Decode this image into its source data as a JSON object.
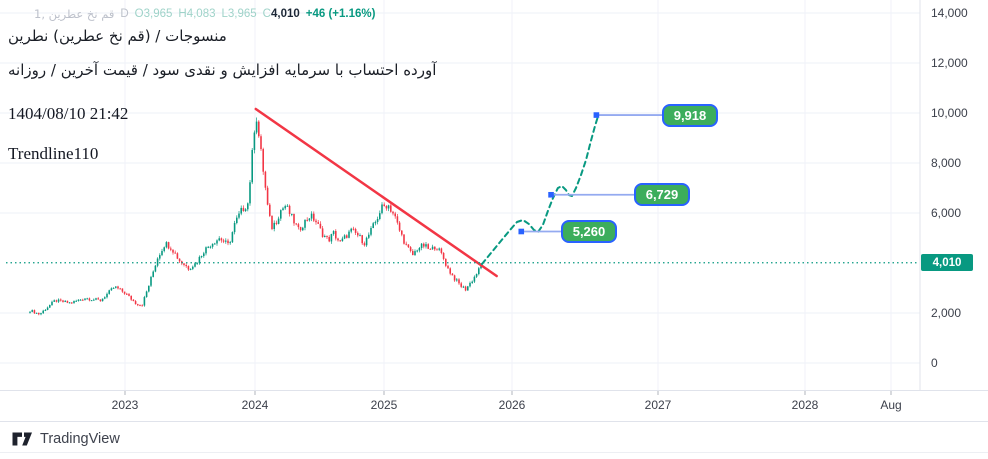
{
  "header": {
    "symbol_line": {
      "symbol": "1, عطرین نخ قم",
      "interval": "D",
      "open_label": "O",
      "open": "3,965",
      "high_label": "H",
      "high": "4,083",
      "low_label": "L",
      "low": "3,965",
      "close_label": "C",
      "close": "4,010",
      "change": "+46 (+1.16%)"
    },
    "title_line": "نطرین (عطرین نخ قم) / منسوجات",
    "subtitle_line": "روزانه / آخرین قیمت / سود نقدی و افزایش سرمایه با احتساب آورده",
    "datetime_line": "1404/08/10 21:42",
    "indicator_name": "Trendline110"
  },
  "footer": {
    "logo_text": "TradingView"
  },
  "chart_data": {
    "type": "candlestick",
    "symbol": "عطرین نخ قم",
    "interval": "D",
    "ohlc_current": {
      "open": 3965,
      "high": 4083,
      "low": 3965,
      "close": 4010,
      "change": 46,
      "change_pct": 1.16
    },
    "x_axis": {
      "labels": [
        "2023",
        "2024",
        "2025",
        "2026",
        "2027",
        "2028",
        "Aug"
      ]
    },
    "y_axis": {
      "tick_values": [
        0,
        2000,
        6000,
        8000,
        10000,
        12000,
        14000
      ],
      "tick_labels": [
        "0",
        "2,000",
        "6,000",
        "8,000",
        "10,000",
        "12,000",
        "14,000"
      ],
      "range": [
        0,
        14500
      ],
      "current_price": 4010,
      "current_price_label": "4,010"
    },
    "close_path": [
      [
        2022.27,
        2100
      ],
      [
        2022.34,
        1950
      ],
      [
        2022.46,
        2500
      ],
      [
        2022.58,
        2400
      ],
      [
        2022.69,
        2600
      ],
      [
        2022.81,
        2500
      ],
      [
        2022.92,
        3050
      ],
      [
        2023.0,
        2800
      ],
      [
        2023.08,
        2400
      ],
      [
        2023.13,
        2300
      ],
      [
        2023.19,
        3200
      ],
      [
        2023.25,
        4200
      ],
      [
        2023.31,
        4800
      ],
      [
        2023.36,
        4600
      ],
      [
        2023.42,
        4100
      ],
      [
        2023.49,
        3800
      ],
      [
        2023.55,
        4000
      ],
      [
        2023.61,
        4500
      ],
      [
        2023.67,
        4800
      ],
      [
        2023.73,
        5000
      ],
      [
        2023.8,
        4700
      ],
      [
        2023.85,
        5600
      ],
      [
        2023.9,
        6100
      ],
      [
        2023.95,
        6400
      ],
      [
        2023.98,
        8200
      ],
      [
        2024.01,
        10100
      ],
      [
        2024.03,
        9200
      ],
      [
        2024.07,
        7600
      ],
      [
        2024.1,
        6300
      ],
      [
        2024.13,
        5400
      ],
      [
        2024.17,
        5700
      ],
      [
        2024.2,
        6100
      ],
      [
        2024.24,
        6300
      ],
      [
        2024.29,
        5800
      ],
      [
        2024.34,
        5300
      ],
      [
        2024.38,
        5600
      ],
      [
        2024.43,
        5900
      ],
      [
        2024.47,
        5700
      ],
      [
        2024.52,
        5200
      ],
      [
        2024.57,
        4900
      ],
      [
        2024.61,
        5200
      ],
      [
        2024.66,
        4800
      ],
      [
        2024.71,
        5100
      ],
      [
        2024.75,
        5300
      ],
      [
        2024.8,
        5100
      ],
      [
        2024.85,
        4800
      ],
      [
        2024.89,
        5200
      ],
      [
        2024.94,
        5700
      ],
      [
        2024.98,
        6200
      ],
      [
        2025.03,
        6350
      ],
      [
        2025.08,
        5900
      ],
      [
        2025.12,
        5300
      ],
      [
        2025.17,
        4700
      ],
      [
        2025.22,
        4300
      ],
      [
        2025.26,
        4600
      ],
      [
        2025.31,
        4700
      ],
      [
        2025.36,
        4500
      ],
      [
        2025.4,
        4700
      ],
      [
        2025.45,
        4300
      ],
      [
        2025.49,
        3800
      ],
      [
        2025.54,
        3400
      ],
      [
        2025.59,
        3100
      ],
      [
        2025.63,
        2950
      ],
      [
        2025.68,
        3300
      ],
      [
        2025.73,
        3700
      ],
      [
        2025.76,
        4010
      ]
    ],
    "trendline": {
      "from": [
        2024.01,
        10160
      ],
      "to": [
        2025.87,
        3480
      ],
      "color": "#f23645"
    },
    "projection": {
      "color": "#089981",
      "points": [
        [
          2025.757,
          3960
        ],
        [
          2025.826,
          4400
        ],
        [
          2025.903,
          4880
        ],
        [
          2025.973,
          5320
        ],
        [
          2026.027,
          5640
        ],
        [
          2026.073,
          5720
        ],
        [
          2026.119,
          5560
        ],
        [
          2026.158,
          5320
        ],
        [
          2026.189,
          5240
        ],
        [
          2026.227,
          5520
        ],
        [
          2026.266,
          6080
        ],
        [
          2026.305,
          6600
        ],
        [
          2026.343,
          7000
        ],
        [
          2026.374,
          7080
        ],
        [
          2026.405,
          6920
        ],
        [
          2026.428,
          6720
        ],
        [
          2026.452,
          6680
        ],
        [
          2026.483,
          7000
        ],
        [
          2026.521,
          7520
        ],
        [
          2026.56,
          8120
        ],
        [
          2026.598,
          8880
        ],
        [
          2026.629,
          9480
        ],
        [
          2026.653,
          9880
        ]
      ]
    },
    "targets": [
      {
        "t": 2026.06,
        "price": 5260,
        "label": "5,260"
      },
      {
        "t": 2026.29,
        "price": 6729,
        "label": "6,729"
      },
      {
        "t": 2026.64,
        "price": 9918,
        "label": "9,918"
      }
    ],
    "colors": {
      "up": "#089981",
      "down": "#f23645",
      "current_line": "#089981",
      "trendline": "#f23645",
      "marker": "#2962ff",
      "connector": "#94aaf0"
    }
  }
}
